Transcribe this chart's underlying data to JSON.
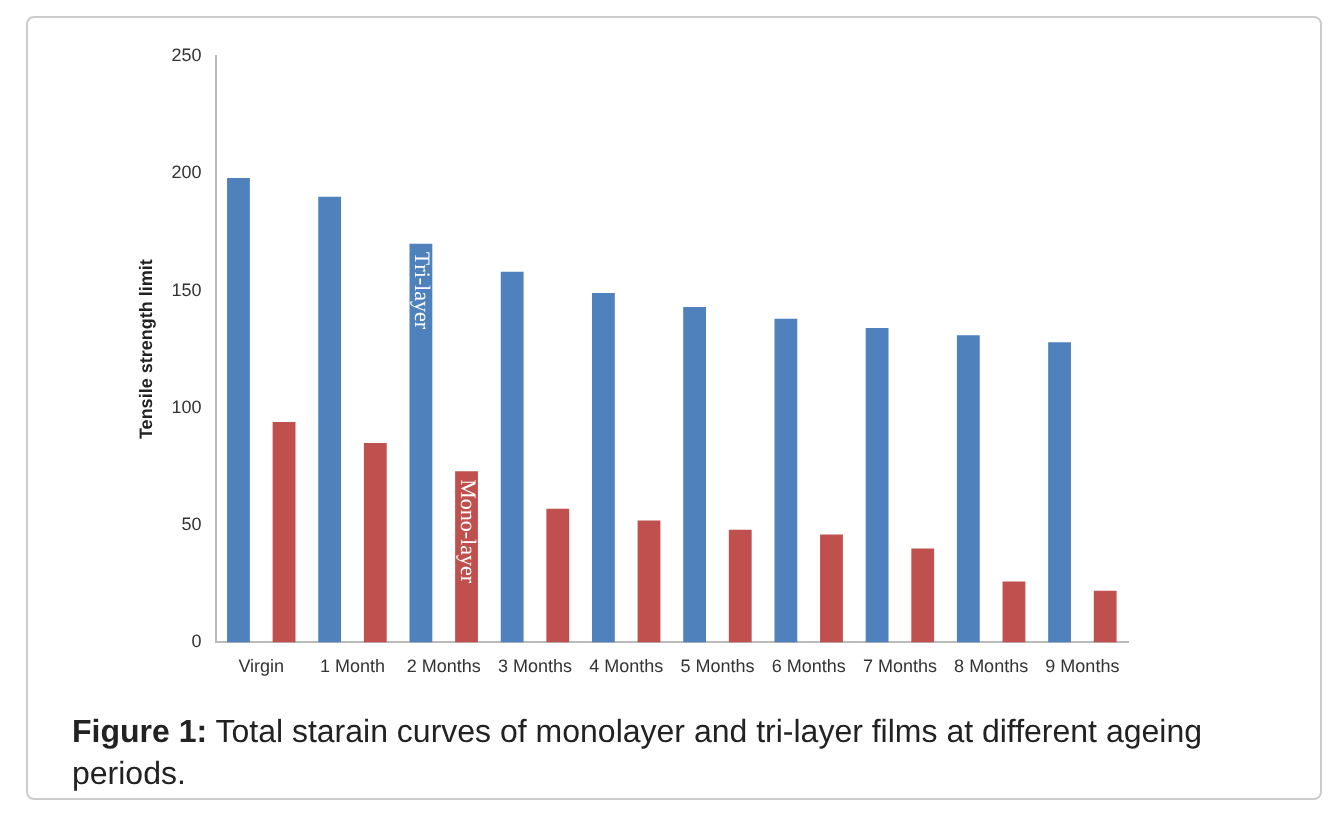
{
  "chart_data": {
    "type": "bar",
    "ylabel": "Tensile strength limit",
    "categories": [
      "Virgin",
      "1 Month",
      "2 Months",
      "3 Months",
      "4 Months",
      "5 Months",
      "6 Months",
      "7 Months",
      "8 Months",
      "9 Months"
    ],
    "series": [
      {
        "name": "Tri-layer",
        "color": "#4f81bd",
        "values": [
          198,
          190,
          170,
          158,
          149,
          143,
          138,
          134,
          131,
          128
        ]
      },
      {
        "name": "Mono-layer",
        "color": "#c0504d",
        "values": [
          94,
          85,
          73,
          57,
          52,
          48,
          46,
          40,
          26,
          22
        ]
      }
    ],
    "ylim": [
      0,
      250
    ],
    "yticks": [
      0,
      50,
      100,
      150,
      200,
      250
    ],
    "grid": false,
    "legend": false,
    "annotations": [
      "Figure 1: Total starain curves of monolayer and tri-layer films at different ageing periods."
    ]
  }
}
